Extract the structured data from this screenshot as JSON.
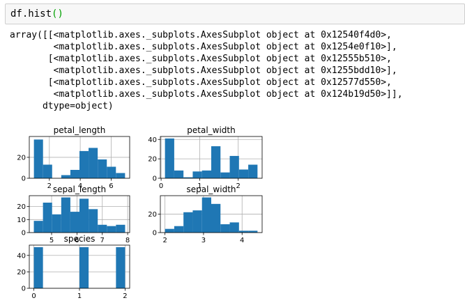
{
  "code_cell": {
    "code": "df.hist",
    "parens": "()"
  },
  "output_lines": [
    "array([[<matplotlib.axes._subplots.AxesSubplot object at 0x12540f4d0>,",
    "        <matplotlib.axes._subplots.AxesSubplot object at 0x1254e0f10>],",
    "       [<matplotlib.axes._subplots.AxesSubplot object at 0x12555b510>,",
    "        <matplotlib.axes._subplots.AxesSubplot object at 0x1255bdd10>],",
    "       [<matplotlib.axes._subplots.AxesSubplot object at 0x12577d550>,",
    "        <matplotlib.axes._subplots.AxesSubplot object at 0x124b19d50>]],",
    "      dtype=object)"
  ],
  "colors": {
    "bar": "#1f77b4",
    "grid": "#b0b0b0",
    "axis": "#000000"
  },
  "chart_data": [
    {
      "type": "bar",
      "title": "petal_length",
      "bin_edges": [
        1.0,
        1.59,
        2.18,
        2.77,
        3.36,
        3.95,
        4.54,
        5.13,
        5.72,
        6.31,
        6.9
      ],
      "values": [
        37,
        13,
        0,
        3,
        8,
        26,
        29,
        18,
        11,
        5
      ],
      "xlim": [
        0.7,
        7.2
      ],
      "ylim": [
        0,
        39.9
      ],
      "xticks": [
        2,
        4,
        6
      ],
      "yticks": [
        0,
        20
      ]
    },
    {
      "type": "bar",
      "title": "petal_width",
      "bin_edges": [
        0.1,
        0.34,
        0.58,
        0.82,
        1.06,
        1.3,
        1.54,
        1.78,
        2.02,
        2.26,
        2.5
      ],
      "values": [
        41,
        8,
        1,
        7,
        8,
        33,
        6,
        23,
        9,
        14
      ],
      "xlim": [
        -0.02,
        2.62
      ],
      "ylim": [
        0,
        43.05
      ],
      "xticks": [
        0,
        1,
        2
      ],
      "yticks": [
        0,
        20,
        40
      ]
    },
    {
      "type": "bar",
      "title": "sepal_length",
      "bin_edges": [
        4.3,
        4.66,
        5.02,
        5.38,
        5.74,
        6.1,
        6.46,
        6.82,
        7.18,
        7.54,
        7.9
      ],
      "values": [
        9,
        23,
        14,
        27,
        16,
        26,
        18,
        6,
        5,
        6
      ],
      "xlim": [
        4.12,
        8.08
      ],
      "ylim": [
        0,
        28.35
      ],
      "xticks": [
        5,
        6,
        7,
        8
      ],
      "yticks": [
        0,
        10,
        20
      ]
    },
    {
      "type": "bar",
      "title": "sepal_width",
      "bin_edges": [
        2.0,
        2.24,
        2.48,
        2.72,
        2.96,
        3.2,
        3.44,
        3.68,
        3.92,
        4.16,
        4.4
      ],
      "values": [
        4,
        7,
        22,
        24,
        38,
        31,
        9,
        11,
        2,
        2
      ],
      "xlim": [
        1.88,
        4.52
      ],
      "ylim": [
        0,
        39.9
      ],
      "xticks": [
        2,
        3,
        4
      ],
      "yticks": [
        0,
        20
      ]
    },
    {
      "type": "bar",
      "title": "species",
      "bin_edges": [
        0.0,
        0.2,
        0.4,
        0.6,
        0.8,
        1.0,
        1.2,
        1.4,
        1.6,
        1.8,
        2.0
      ],
      "values": [
        50,
        0,
        0,
        0,
        0,
        50,
        0,
        0,
        0,
        50
      ],
      "xlim": [
        -0.1,
        2.1
      ],
      "ylim": [
        0,
        52.5
      ],
      "xticks": [
        0,
        1,
        2
      ],
      "yticks": [
        0,
        20,
        40
      ]
    }
  ]
}
